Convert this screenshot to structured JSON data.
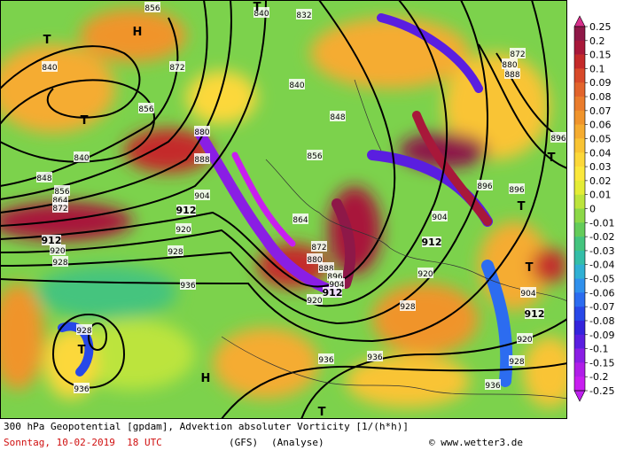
{
  "colorbar": {
    "labels": [
      "0.25",
      "0.2",
      "0.15",
      "0.1",
      "0.09",
      "0.08",
      "0.07",
      "0.06",
      "0.05",
      "0.04",
      "0.03",
      "0.02",
      "0.01",
      "0",
      "-0.01",
      "-0.02",
      "-0.03",
      "-0.04",
      "-0.05",
      "-0.06",
      "-0.07",
      "-0.08",
      "-0.09",
      "-0.1",
      "-0.15",
      "-0.2",
      "-0.25"
    ],
    "colors": [
      "#8e1848",
      "#a8183a",
      "#c42a2a",
      "#d84a2a",
      "#e2642c",
      "#ea7c2c",
      "#f0942c",
      "#f5ac30",
      "#f9c434",
      "#fcd83a",
      "#fbe83c",
      "#e4ec36",
      "#bce43c",
      "#8cd848",
      "#64cc5a",
      "#44c47e",
      "#34bea8",
      "#30b0d4",
      "#3090ec",
      "#2c6cf0",
      "#2848e8",
      "#3424dc",
      "#5a1ee0",
      "#8a1ee4",
      "#b01ee8",
      "#c81ef0"
    ],
    "top_color": "#d8308c",
    "bottom_color": "#c020f0"
  },
  "map_labels": [
    "856",
    "H",
    "840",
    "832",
    "T",
    "T",
    "840",
    "872",
    "840",
    "848",
    "856",
    "T",
    "880",
    "888",
    "840",
    "848",
    "856",
    "864",
    "872",
    "904",
    "912",
    "920",
    "928",
    "912",
    "920",
    "928",
    "936",
    "856",
    "864",
    "872",
    "880",
    "888",
    "896",
    "904",
    "912",
    "920",
    "928",
    "904",
    "912",
    "920",
    "896",
    "896",
    "T",
    "872",
    "880",
    "888",
    "896",
    "T",
    "T",
    "904",
    "912",
    "920",
    "928",
    "936",
    "936",
    "936",
    "928",
    "T",
    "936",
    "H",
    "T"
  ],
  "footer": {
    "title": "300 hPa Geopotential [gpdam], Advektion absoluter Vorticity [1/(h*h)]",
    "date": "Sonntag, 10-02-2019  18 UTC",
    "model": "(GFS)",
    "run": "(Analyse)",
    "credit": "© www.wetter3.de"
  }
}
